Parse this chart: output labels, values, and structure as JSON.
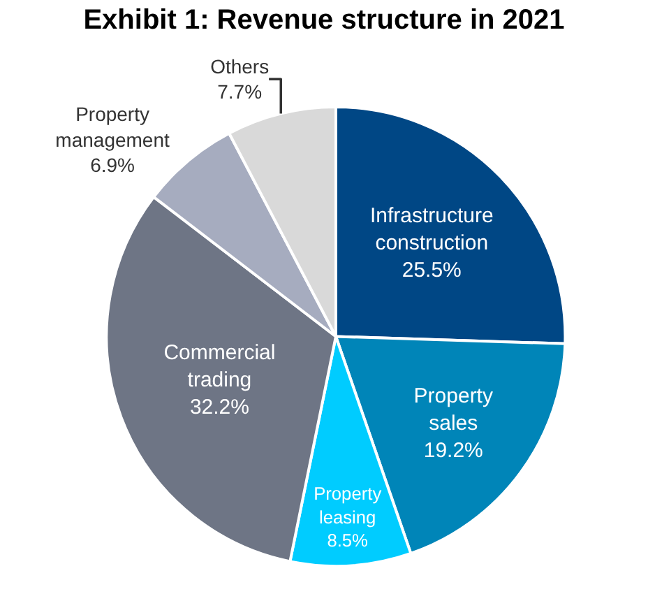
{
  "chart_data": {
    "type": "pie",
    "title": "Exhibit 1: Revenue structure in 2021",
    "categories": [
      "Infrastructure construction",
      "Property sales",
      "Property leasing",
      "Commercial trading",
      "Property management",
      "Others"
    ],
    "values": [
      25.5,
      19.2,
      8.5,
      32.2,
      6.9,
      7.7
    ],
    "value_labels": [
      "25.5%",
      "19.2%",
      "8.5%",
      "32.2%",
      "6.9%",
      "7.7%"
    ],
    "colors": [
      "#004785",
      "#0085b8",
      "#00ccff",
      "#6e7585",
      "#a6acbf",
      "#d9d9d9"
    ],
    "legend": false
  }
}
